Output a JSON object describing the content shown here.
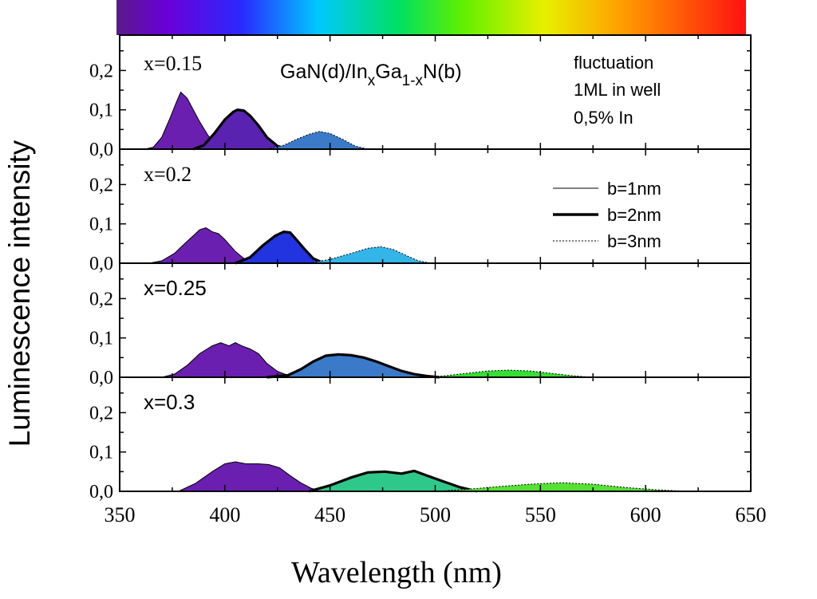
{
  "chart_data": {
    "type": "area",
    "title": "GaN(d)/InxGa1-xN(b)",
    "title_parts": {
      "a": "GaN(d)/In",
      "sub1": "x",
      "b": "Ga",
      "sub2": "1-x",
      "c": "N(b)"
    },
    "xlabel": "Wavelength (nm)",
    "ylabel": "Luminescence intensity",
    "xlim": [
      350,
      650
    ],
    "ylim": [
      0,
      0.29
    ],
    "xticks": [
      "350",
      "400",
      "450",
      "500",
      "550",
      "600",
      "650"
    ],
    "yticks": [
      "0,0",
      "0,1",
      "0,2"
    ],
    "annotation": [
      "fluctuation",
      "1ML in well",
      "0,5% In"
    ],
    "legend": [
      {
        "label": "b=1nm",
        "style": "thin"
      },
      {
        "label": "b=2nm",
        "style": "thick"
      },
      {
        "label": "b=3nm",
        "style": "dotted"
      }
    ],
    "spectrum_bar": {
      "from_nm": 380,
      "to_nm": 700
    },
    "panels": [
      {
        "label": "x=0.15",
        "series": [
          {
            "name": "b=1nm",
            "fill": "#6a1fb0",
            "x": [
              362,
              366,
              370,
              374,
              377,
              379,
              382,
              385,
              388,
              392,
              396,
              400
            ],
            "y": [
              0,
              0.005,
              0.03,
              0.08,
              0.12,
              0.145,
              0.13,
              0.1,
              0.07,
              0.035,
              0.01,
              0
            ]
          },
          {
            "name": "b=2nm",
            "fill": "#5a22b0",
            "x": [
              385,
              390,
              395,
              400,
              404,
              406,
              409,
              412,
              416,
              420,
              425,
              430
            ],
            "y": [
              0,
              0.01,
              0.04,
              0.075,
              0.095,
              0.1,
              0.098,
              0.085,
              0.06,
              0.03,
              0.008,
              0
            ]
          },
          {
            "name": "b=3nm",
            "fill": "#3a7ac8",
            "x": [
              420,
              428,
              434,
              440,
              445,
              450,
              456,
              462,
              468
            ],
            "y": [
              0,
              0.01,
              0.025,
              0.038,
              0.045,
              0.04,
              0.025,
              0.008,
              0
            ]
          }
        ]
      },
      {
        "label": "x=0.2",
        "series": [
          {
            "name": "b=1nm",
            "fill": "#6a1fb0",
            "x": [
              364,
              370,
              376,
              381,
              385,
              388,
              391,
              394,
              397,
              400,
              405,
              410,
              413
            ],
            "y": [
              0,
              0.006,
              0.025,
              0.05,
              0.07,
              0.085,
              0.09,
              0.08,
              0.075,
              0.06,
              0.03,
              0.008,
              0
            ]
          },
          {
            "name": "b=2nm",
            "fill": "#2233e0",
            "x": [
              405,
              412,
              418,
              424,
              428,
              431,
              434,
              438,
              442,
              447
            ],
            "y": [
              0,
              0.015,
              0.045,
              0.07,
              0.08,
              0.078,
              0.06,
              0.035,
              0.012,
              0
            ]
          },
          {
            "name": "b=3nm",
            "fill": "#33b5e8",
            "x": [
              440,
              450,
              460,
              468,
              474,
              480,
              486,
              492,
              498
            ],
            "y": [
              0,
              0.01,
              0.025,
              0.038,
              0.042,
              0.035,
              0.02,
              0.006,
              0
            ]
          }
        ]
      },
      {
        "label": "x=0.25",
        "series": [
          {
            "name": "b=1nm",
            "fill": "#6a1fb0",
            "x": [
              370,
              376,
              382,
              388,
              394,
              398,
              402,
              405,
              408,
              412,
              416,
              420,
              425,
              430,
              433
            ],
            "y": [
              0,
              0.008,
              0.03,
              0.06,
              0.08,
              0.088,
              0.08,
              0.088,
              0.08,
              0.072,
              0.06,
              0.035,
              0.015,
              0.005,
              0
            ]
          },
          {
            "name": "b=2nm",
            "fill": "#3a7ac8",
            "x": [
              420,
              430,
              436,
              442,
              448,
              454,
              460,
              466,
              472,
              478,
              484,
              490,
              496,
              502
            ],
            "y": [
              0,
              0.005,
              0.02,
              0.04,
              0.055,
              0.058,
              0.056,
              0.05,
              0.04,
              0.028,
              0.016,
              0.008,
              0.003,
              0
            ]
          },
          {
            "name": "b=3nm",
            "fill": "#33e033",
            "x": [
              495,
              505,
              515,
              525,
              535,
              545,
              555,
              565,
              575
            ],
            "y": [
              0,
              0.004,
              0.01,
              0.016,
              0.018,
              0.016,
              0.01,
              0.004,
              0
            ]
          }
        ]
      },
      {
        "label": "x=0.3",
        "series": [
          {
            "name": "b=1nm",
            "fill": "#6a1fb0",
            "x": [
              378,
              386,
              394,
              400,
              405,
              410,
              416,
              421,
              426,
              431,
              436,
              441,
              446
            ],
            "y": [
              0,
              0.02,
              0.05,
              0.07,
              0.075,
              0.07,
              0.07,
              0.068,
              0.06,
              0.04,
              0.022,
              0.008,
              0
            ]
          },
          {
            "name": "b=2nm",
            "fill": "#2ec88a",
            "x": [
              440,
              450,
              460,
              468,
              476,
              484,
              490,
              496,
              504,
              512,
              520
            ],
            "y": [
              0,
              0.015,
              0.035,
              0.048,
              0.05,
              0.045,
              0.052,
              0.04,
              0.025,
              0.01,
              0
            ]
          },
          {
            "name": "b=3nm",
            "fill": "#55e033",
            "x": [
              500,
              515,
              530,
              545,
              560,
              575,
              590,
              605,
              620
            ],
            "y": [
              0,
              0.005,
              0.012,
              0.018,
              0.022,
              0.018,
              0.01,
              0.004,
              0
            ]
          }
        ]
      }
    ]
  }
}
